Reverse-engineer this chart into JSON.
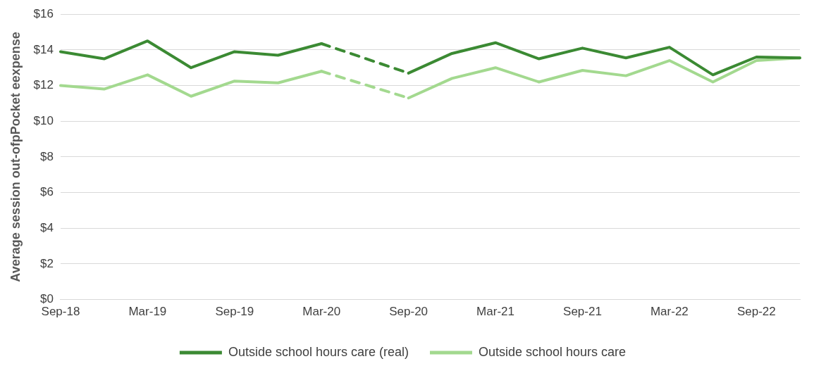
{
  "chart_data": {
    "type": "line",
    "ylabel": "Average session out-ofpPocket eexpense",
    "categories": [
      "Sep-18",
      null,
      "Mar-19",
      null,
      "Sep-19",
      null,
      "Mar-20",
      null,
      "Sep-20",
      null,
      "Mar-21",
      null,
      "Sep-21",
      null,
      "Mar-22",
      null,
      "Sep-22",
      null
    ],
    "series": [
      {
        "name": "Outside school hours care (real)",
        "color": "#3b8a33",
        "values": [
          13.9,
          13.5,
          14.5,
          13.0,
          13.9,
          13.7,
          14.35,
          null,
          12.7,
          13.8,
          14.4,
          13.5,
          14.1,
          13.55,
          14.15,
          12.6,
          13.6,
          13.55
        ]
      },
      {
        "name": "Outside school hours care",
        "color": "#a3d98f",
        "values": [
          12.0,
          11.8,
          12.6,
          11.4,
          12.25,
          12.15,
          12.8,
          null,
          11.3,
          12.4,
          13.0,
          12.2,
          12.85,
          12.55,
          13.4,
          12.2,
          13.4,
          13.55
        ]
      }
    ],
    "ylim": [
      0,
      16
    ],
    "yticks": [
      {
        "value": 0,
        "label": "$0"
      },
      {
        "value": 2,
        "label": "$2"
      },
      {
        "value": 4,
        "label": "$4"
      },
      {
        "value": 6,
        "label": "$6"
      },
      {
        "value": 8,
        "label": "$8"
      },
      {
        "value": 10,
        "label": "$10"
      },
      {
        "value": 12,
        "label": "$12"
      },
      {
        "value": 14,
        "label": "$14"
      },
      {
        "value": 16,
        "label": "$16"
      }
    ],
    "grid": "y",
    "legend": "bottom",
    "marker": "none",
    "line_style": "solid"
  }
}
